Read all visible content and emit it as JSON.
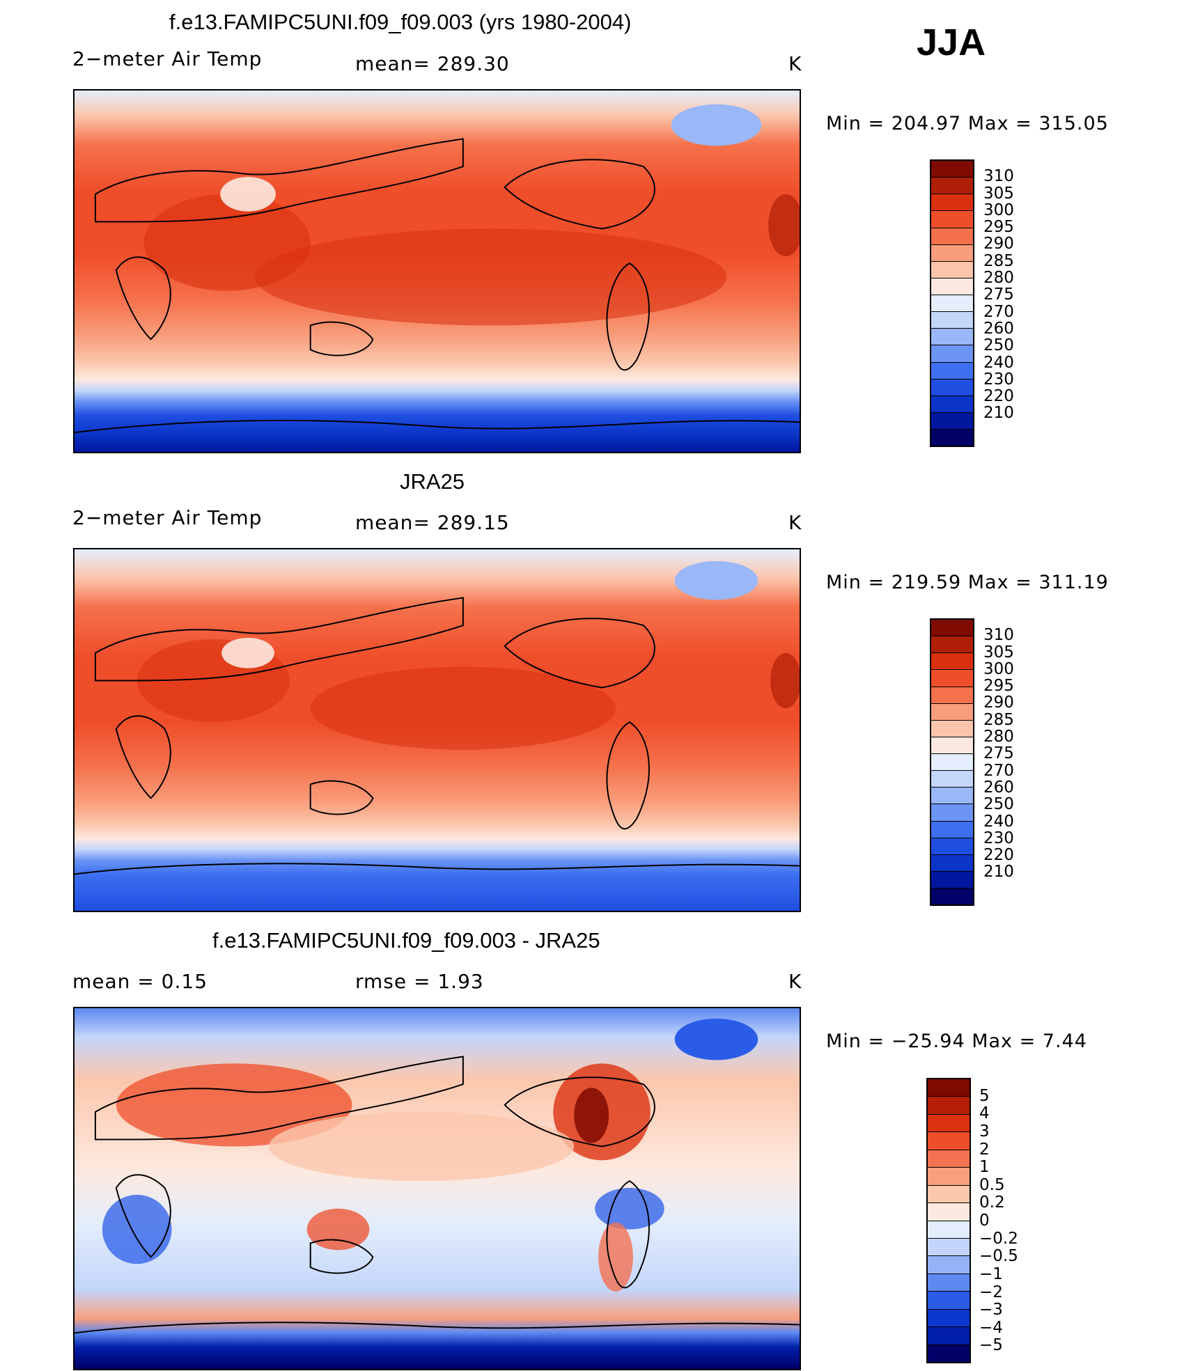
{
  "season": "JJA",
  "colors": {
    "temp_scale": [
      "#000066",
      "#00179e",
      "#0b35c9",
      "#1f4ee0",
      "#3d6ff0",
      "#6c95f5",
      "#9ab7f7",
      "#c4d6fa",
      "#e4eefc",
      "#fde9df",
      "#fcc5ab",
      "#f99e7c",
      "#f5714c",
      "#ef4e2a",
      "#d9300e",
      "#b01f07",
      "#7f0a00"
    ],
    "diff_scale": [
      "#000066",
      "#001ea8",
      "#0b37cc",
      "#2a5ce8",
      "#5d89f2",
      "#94b3f6",
      "#c3d5fa",
      "#e3edfc",
      "#fde9df",
      "#fbc7ad",
      "#f8a07e",
      "#f37251",
      "#ef4e2a",
      "#dc3210",
      "#b61f06",
      "#7f0a00"
    ]
  },
  "panels": [
    {
      "id": "model",
      "title": "f.e13.FAMIPC5UNI.f09_f09.003 (yrs 1980-2004)",
      "left_label": "2−meter Air Temp",
      "center_label": "mean=  289.30",
      "units": "K",
      "minmax": "Min  =  204.97  Max  =  315.05",
      "colorbar": {
        "scale": "temp",
        "ticks": [
          "310",
          "305",
          "300",
          "295",
          "290",
          "285",
          "280",
          "275",
          "270",
          "260",
          "250",
          "240",
          "230",
          "220",
          "210"
        ]
      }
    },
    {
      "id": "obs",
      "title": "JRA25",
      "left_label": "2−meter Air Temp",
      "center_label": "mean=  289.15",
      "units": "K",
      "minmax": "Min  =  219.59  Max  =  311.19",
      "colorbar": {
        "scale": "temp",
        "ticks": [
          "310",
          "305",
          "300",
          "295",
          "290",
          "285",
          "280",
          "275",
          "270",
          "260",
          "250",
          "240",
          "230",
          "220",
          "210"
        ]
      }
    },
    {
      "id": "diff",
      "title": "f.e13.FAMIPC5UNI.f09_f09.003 - JRA25",
      "left_label": "mean  =     0.15",
      "center_label": "rmse  =     1.93",
      "units": "K",
      "minmax": "Min  =  −25.94  Max  =      7.44",
      "colorbar": {
        "scale": "diff",
        "ticks": [
          "5",
          "4",
          "3",
          "2",
          "1",
          "0.5",
          "0.2",
          "0",
          "−0.2",
          "−0.5",
          "−1",
          "−2",
          "−3",
          "−4",
          "−5"
        ]
      }
    }
  ]
}
